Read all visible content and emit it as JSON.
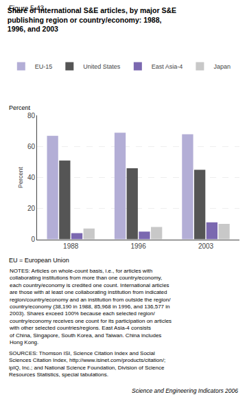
{
  "chart_data": {
    "type": "bar",
    "title": "Share of international S&E articles, by major S&E\npublishing region or country/economy: 1988,\n1996, and 2003",
    "ylabel": "Percent",
    "categories": [
      "1988",
      "1996",
      "2003"
    ],
    "series": [
      {
        "name": "EU-15",
        "color": "#b3aed6",
        "values": [
          67,
          69,
          68
        ]
      },
      {
        "name": "United States",
        "color": "#555555",
        "values": [
          51,
          46,
          45
        ]
      },
      {
        "name": "East Asia-4",
        "color": "#7b68b0",
        "values": [
          4,
          5,
          11
        ]
      },
      {
        "name": "Japan",
        "color": "#c8c8c8",
        "values": [
          7,
          8,
          10
        ]
      }
    ],
    "ylim": [
      0,
      80
    ],
    "yticks": [
      0,
      20,
      40,
      60,
      80
    ],
    "grid": true,
    "legend": "top",
    "annotations": [
      "Figure 5-43",
      "EU = European Union",
      "NOTES: Articles on whole-count basis, i.e., for articles with\ncollaborating institutions from more than one country/economy,\neach country/economy is credited one count. International articles\nare those with at least one collaborating institution from indicated\nregion/country/economy and an institution from outside the region/\ncountry/economy (38,190 in 1988, 85,968 in 1996, and 136,577 in\n2003). Shares exceed 100% because each selected region/\ncountry/economy receives one count for its participation on articles\nwith other selected countries/regions. East Asia-4 consists\nof China, Singapore, South Korea, and Taiwan. China includes\nHong Kong.",
      "SOURCES: Thomson ISI, Science Citation Index and Social\nSciences Citation Index, http://www.isinet.com/products/citation/;\nipIQ, Inc.; and National Science Foundation, Division of Science\nResources Statistics, special tabulations.",
      "Science and Engineering Indicators 2006"
    ]
  }
}
